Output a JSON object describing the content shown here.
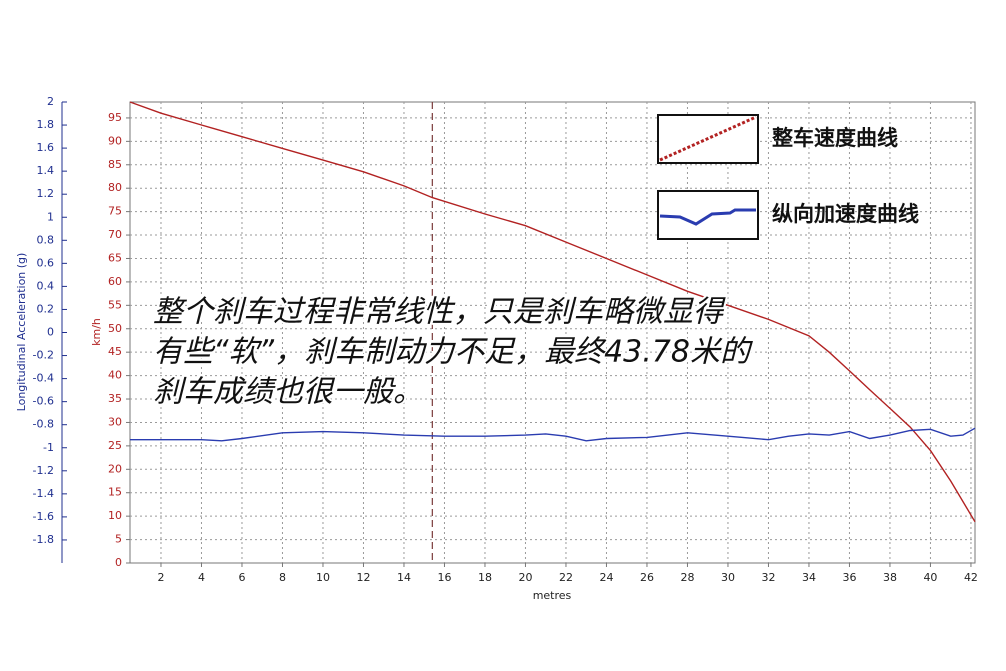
{
  "chart_data": {
    "type": "line",
    "x_label": "metres",
    "y_label": "Longitudinal Acceleration (g)",
    "y2_label": "km/h",
    "xlim": [
      0.47,
      42.2
    ],
    "xticks": [
      2,
      4,
      6,
      8,
      10,
      12,
      14,
      16,
      18,
      20,
      22,
      24,
      26,
      28,
      30,
      32,
      34,
      36,
      38,
      40,
      42
    ],
    "ylim": [
      -2,
      2
    ],
    "yticks": [
      2,
      1.8,
      1.6,
      1.4,
      1.2,
      1,
      0.8,
      0.6,
      0.4,
      0.2,
      0,
      -0.2,
      -0.4,
      -0.6,
      -0.8,
      -1,
      -1.2,
      -1.4,
      -1.6,
      -1.8
    ],
    "y2lim": [
      0,
      98.4
    ],
    "y2ticks": [
      95,
      90,
      85,
      80,
      75,
      70,
      65,
      60,
      55,
      50,
      45,
      40,
      35,
      30,
      25,
      20,
      15,
      10,
      5,
      0
    ],
    "grid": true,
    "marker_x": 15.4,
    "series": [
      {
        "name": "整车速度曲线",
        "color": "#b22222",
        "axis": "y2",
        "x": [
          0.47,
          2,
          4,
          6,
          8,
          10,
          12,
          14,
          15.4,
          18,
          20,
          22,
          24,
          26,
          28,
          30,
          32,
          34,
          35,
          36,
          37,
          38,
          39,
          40,
          41,
          42.2
        ],
        "values": [
          98.4,
          96,
          93.5,
          91,
          88.5,
          86,
          83.5,
          80.5,
          78,
          74.5,
          72,
          68.5,
          65,
          61.5,
          58,
          55,
          52,
          48.5,
          45,
          41,
          37,
          33,
          29,
          24,
          17.5,
          8.8
        ]
      },
      {
        "name": "纵向加速度曲线",
        "color": "#2a3cb0",
        "axis": "y",
        "x": [
          0.47,
          2,
          4,
          5,
          6,
          8,
          10,
          12,
          14,
          16,
          18,
          20,
          21,
          22,
          23,
          24,
          26,
          28,
          30,
          32,
          33,
          34,
          35,
          36,
          37,
          38,
          39,
          40,
          41,
          41.6,
          42.2
        ],
        "values": [
          -0.93,
          -0.93,
          -0.93,
          -0.94,
          -0.92,
          -0.87,
          -0.86,
          -0.87,
          -0.89,
          -0.9,
          -0.9,
          -0.89,
          -0.88,
          -0.9,
          -0.94,
          -0.92,
          -0.91,
          -0.87,
          -0.9,
          -0.93,
          -0.9,
          -0.88,
          -0.89,
          -0.86,
          -0.92,
          -0.89,
          -0.85,
          -0.84,
          -0.9,
          -0.89,
          -0.83
        ]
      }
    ],
    "annotation": [
      "整个刹车过程非常线性，只是刹车略微显得",
      "有些“软”，刹车制动力不足，最终43.78米的",
      "刹车成绩也很一般。"
    ]
  }
}
